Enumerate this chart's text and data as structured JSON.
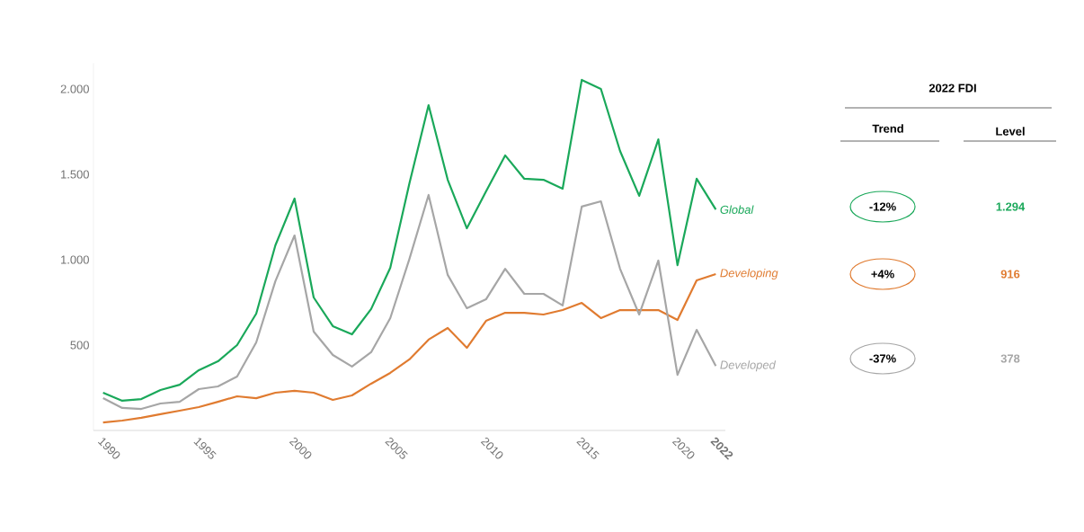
{
  "chart_data": {
    "type": "line",
    "x": [
      1990,
      1991,
      1992,
      1993,
      1994,
      1995,
      1996,
      1997,
      1998,
      1999,
      2000,
      2001,
      2002,
      2003,
      2004,
      2005,
      2006,
      2007,
      2008,
      2009,
      2010,
      2011,
      2012,
      2013,
      2014,
      2015,
      2016,
      2017,
      2018,
      2019,
      2020,
      2021,
      2022
    ],
    "series": [
      {
        "name": "Global",
        "color": "#1aa85a",
        "values": [
          221,
          174,
          184,
          237,
          268,
          353,
          405,
          500,
          684,
          1084,
          1358,
          779,
          611,
          563,
          711,
          953,
          1447,
          1905,
          1468,
          1184,
          1400,
          1611,
          1474,
          1468,
          1416,
          2053,
          2000,
          1637,
          1374,
          1705,
          968,
          1474,
          1294
        ]
      },
      {
        "name": "Developing",
        "color": "#e07b30",
        "values": [
          47,
          58,
          74,
          95,
          116,
          137,
          168,
          200,
          189,
          221,
          232,
          221,
          179,
          205,
          274,
          337,
          416,
          532,
          600,
          484,
          642,
          689,
          689,
          679,
          705,
          747,
          658,
          705,
          705,
          705,
          647,
          879,
          916
        ]
      },
      {
        "name": "Developed",
        "color": "#a6a6a6",
        "values": [
          189,
          132,
          126,
          158,
          168,
          242,
          258,
          316,
          516,
          874,
          1142,
          579,
          442,
          374,
          458,
          658,
          1005,
          1379,
          911,
          716,
          768,
          947,
          800,
          800,
          732,
          1311,
          1342,
          947,
          679,
          995,
          326,
          589,
          378
        ]
      }
    ],
    "xlim": [
      1989.5,
      2022.5
    ],
    "ylim": [
      0,
      2150
    ],
    "xticks": [
      1990,
      1995,
      2000,
      2005,
      2010,
      2015,
      2020,
      {
        "value": 2022,
        "label": "**2022**"
      }
    ],
    "yticks": [
      {
        "value": 500,
        "label": "500"
      },
      {
        "value": 1000,
        "label": "1.000"
      },
      {
        "value": 1500,
        "label": "1.500"
      },
      {
        "value": 2000,
        "label": "2.000"
      }
    ],
    "annotations": [
      "2022 FDI",
      "Trend",
      "Level",
      "-12%",
      "1.294",
      "+4%",
      "916",
      "-37%",
      "378"
    ],
    "grid": false,
    "legend": false,
    "marker": "none",
    "line_style": "solid"
  }
}
